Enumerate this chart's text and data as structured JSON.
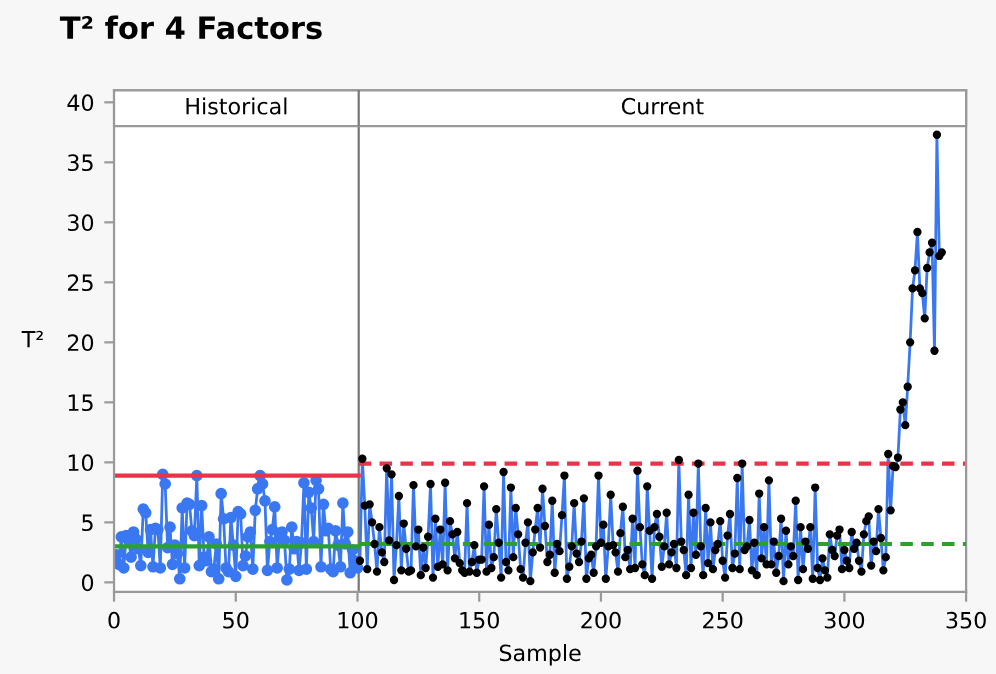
{
  "chart_data": {
    "type": "line",
    "title": "T² for 4 Factors",
    "xlabel": "Sample",
    "ylabel": "T²",
    "xlim": [
      0,
      350
    ],
    "xticks": [
      0,
      50,
      100,
      150,
      200,
      250,
      300,
      350
    ],
    "ylim": [
      -0.8,
      41
    ],
    "yticks": [
      0,
      5,
      10,
      15,
      20,
      25,
      30,
      35,
      40
    ],
    "grid": false,
    "legend": false,
    "ref_lines": [
      {
        "axis": "x",
        "value": 100.5,
        "color": "#777777"
      }
    ],
    "annotations": [
      "Historical",
      "Current"
    ],
    "series": [
      {
        "type": "line",
        "color": "#3a78f2",
        "marker": "circle",
        "x": [
          1,
          2,
          3,
          4,
          5,
          6,
          7,
          8,
          9,
          10,
          11,
          12,
          13,
          14,
          15,
          16,
          17,
          18,
          19,
          20,
          21,
          22,
          23,
          24,
          25,
          26,
          27,
          28,
          29,
          30,
          31,
          32,
          33,
          34,
          35,
          36,
          37,
          38,
          39,
          40,
          41,
          42,
          43,
          44,
          45,
          46,
          47,
          48,
          49,
          50,
          51,
          52,
          53,
          54,
          55,
          56,
          57,
          58,
          59,
          60,
          61,
          62,
          63,
          64,
          65,
          66,
          67,
          68,
          69,
          70,
          71,
          72,
          73,
          74,
          75,
          76,
          77,
          78,
          79,
          80,
          81,
          82,
          83,
          84,
          85,
          86,
          87,
          88,
          89,
          90,
          91,
          92,
          93,
          94,
          95,
          96,
          97,
          98,
          99,
          100
        ],
        "values": [
          2.3,
          1.5,
          3.8,
          1.2,
          3.9,
          3.5,
          2.1,
          4.2,
          3.6,
          2.8,
          1.4,
          6.1,
          5.8,
          2.5,
          4.4,
          1.3,
          4.5,
          4.4,
          1.2,
          9.0,
          8.2,
          2.9,
          4.6,
          1.5,
          3.1,
          2.4,
          0.3,
          6.2,
          1.2,
          6.6,
          6.5,
          4.3,
          3.9,
          8.9,
          1.4,
          6.4,
          2.1,
          1.8,
          3.8,
          0.9,
          1.1,
          3.2,
          0.3,
          7.4,
          5.3,
          1.2,
          0.9,
          5.4,
          3.1,
          0.5,
          5.9,
          5.7,
          1.4,
          2.2,
          3.8,
          4.2,
          1.1,
          6.0,
          7.8,
          8.9,
          8.2,
          6.8,
          1.0,
          3.4,
          4.4,
          6.3,
          1.2,
          3.8,
          4.2,
          3.5,
          0.2,
          1.1,
          4.6,
          2.8,
          3.4,
          1.0,
          3.3,
          8.3,
          1.1,
          7.5,
          6.2,
          3.4,
          8.5,
          7.8,
          1.3,
          6.5,
          4.3,
          4.5,
          1.1,
          0.9,
          4.3,
          3.1,
          1.3,
          6.6,
          3.2,
          4.2,
          0.8,
          2.7,
          1.8,
          1.2
        ]
      },
      {
        "color": "#3a78f2",
        "marker": "none",
        "x": [
          101,
          102,
          103,
          104,
          105,
          106,
          107,
          108,
          109,
          110,
          111,
          112,
          113,
          114,
          115,
          116,
          117,
          118,
          119,
          120,
          121,
          122,
          123,
          124,
          125,
          126,
          127,
          128,
          129,
          130,
          131,
          132,
          133,
          134,
          135,
          136,
          137,
          138,
          139,
          140,
          141,
          142,
          143,
          144,
          145,
          146,
          147,
          148,
          149,
          150,
          151,
          152,
          153,
          154,
          155,
          156,
          157,
          158,
          159,
          160,
          161,
          162,
          163,
          164,
          165,
          166,
          167,
          168,
          169,
          170,
          171,
          172,
          173,
          174,
          175,
          176,
          177,
          178,
          179,
          180,
          181,
          182,
          183,
          184,
          185,
          186,
          187,
          188,
          189,
          190,
          191,
          192,
          193,
          194,
          195,
          196,
          197,
          198,
          199,
          200,
          201,
          202,
          203,
          204,
          205,
          206,
          207,
          208,
          209,
          210,
          211,
          212,
          213,
          214,
          215,
          216,
          217,
          218,
          219,
          220,
          221,
          222,
          223,
          224,
          225,
          226,
          227,
          228,
          229,
          230,
          231,
          232,
          233,
          234,
          235,
          236,
          237,
          238,
          239,
          240,
          241,
          242,
          243,
          244,
          245,
          246,
          247,
          248,
          249,
          250,
          251,
          252,
          253,
          254,
          255,
          256,
          257,
          258,
          259,
          260,
          261,
          262,
          263,
          264,
          265,
          266,
          267,
          268,
          269,
          270,
          271,
          272,
          273,
          274,
          275,
          276,
          277,
          278,
          279,
          280,
          281,
          282,
          283,
          284,
          285,
          286,
          287,
          288,
          289,
          290,
          291,
          292,
          293,
          294,
          295,
          296,
          297,
          298,
          299,
          300,
          301,
          302,
          303,
          304,
          305,
          306,
          307,
          308,
          309,
          310,
          311,
          312,
          313,
          314,
          315,
          316,
          317,
          318,
          319,
          320,
          321,
          322,
          323,
          324,
          325,
          326,
          327,
          328,
          329,
          330,
          331,
          332,
          333,
          334,
          335,
          336,
          337,
          338,
          339,
          340
        ],
        "values": [
          1.8,
          10.3,
          6.4,
          1.1,
          6.5,
          5.0,
          3.2,
          0.9,
          4.6,
          2.5,
          1.7,
          9.5,
          3.5,
          9.0,
          0.2,
          3.1,
          7.2,
          1.0,
          4.9,
          2.8,
          0.9,
          1.0,
          8.1,
          3.0,
          4.4,
          0.6,
          2.9,
          1.2,
          3.8,
          8.2,
          0.4,
          5.3,
          1.3,
          4.4,
          1.5,
          8.3,
          1.0,
          5.1,
          4.0,
          2.0,
          4.2,
          1.6,
          1.0,
          0.8,
          6.6,
          0.9,
          1.7,
          3.1,
          0.8,
          1.9,
          1.9,
          8.0,
          0.9,
          4.8,
          1.2,
          2.1,
          6.1,
          3.3,
          0.4,
          9.2,
          1.7,
          1.0,
          7.9,
          2.1,
          6.2,
          4.0,
          1.1,
          0.4,
          3.3,
          5.0,
          0.1,
          2.5,
          4.4,
          6.2,
          2.9,
          7.8,
          4.7,
          1.7,
          2.3,
          6.8,
          0.8,
          3.2,
          2.6,
          5.6,
          8.9,
          0.3,
          1.3,
          3.0,
          6.6,
          2.4,
          1.7,
          3.4,
          7.0,
          0.3,
          2.0,
          2.3,
          0.8,
          3.0,
          8.9,
          3.3,
          4.8,
          0.3,
          3.0,
          7.3,
          3.1,
          2.5,
          0.9,
          4.1,
          6.3,
          2.1,
          2.7,
          1.1,
          5.3,
          1.2,
          9.3,
          4.6,
          1.5,
          0.6,
          8.0,
          4.3,
          0.3,
          4.6,
          5.7,
          3.8,
          1.3,
          3.0,
          5.8,
          1.5,
          2.5,
          3.2,
          1.2,
          10.2,
          3.4,
          2.7,
          0.6,
          7.3,
          1.2,
          5.8,
          2.3,
          9.9,
          3.0,
          0.6,
          6.2,
          1.6,
          5.0,
          1.1,
          2.7,
          3.2,
          5.1,
          1.8,
          0.4,
          3.9,
          5.7,
          1.2,
          2.4,
          8.7,
          1.1,
          9.9,
          2.7,
          3.0,
          5.2,
          1.0,
          3.3,
          0.6,
          7.4,
          2.0,
          4.6,
          1.5,
          8.5,
          1.5,
          3.4,
          0.8,
          2.2,
          5.3,
          0.1,
          4.3,
          1.5,
          3.0,
          2.2,
          6.8,
          0.2,
          4.6,
          1.1,
          3.4,
          2.8,
          4.6,
          0.3,
          7.9,
          1.2,
          0.2,
          2.0,
          1.0,
          0.4,
          4.0,
          2.7,
          2.2,
          3.9,
          4.4,
          1.1,
          2.7,
          1.8,
          1.2,
          4.2,
          2.8,
          3.3,
          1.8,
          0.9,
          4.0,
          5.1,
          5.5,
          1.4,
          3.4,
          2.6,
          6.1,
          3.7,
          1.0,
          2.1,
          10.7,
          6.0,
          9.7,
          9.6,
          10.4,
          14.4,
          15.0,
          13.1,
          16.3,
          20.0,
          24.5,
          26.0,
          29.2,
          24.5,
          24.1,
          22.0,
          26.2,
          27.5,
          28.3,
          19.3,
          37.3,
          27.2,
          27.5
        ]
      },
      {
        "type": "scatter",
        "color": "#000000",
        "marker": "circle",
        "x": [
          101,
          102,
          103,
          104,
          105,
          106,
          107,
          108,
          109,
          110,
          111,
          112,
          113,
          114,
          115,
          116,
          117,
          118,
          119,
          120,
          121,
          122,
          123,
          124,
          125,
          126,
          127,
          128,
          129,
          130,
          131,
          132,
          133,
          134,
          135,
          136,
          137,
          138,
          139,
          140,
          141,
          142,
          143,
          144,
          145,
          146,
          147,
          148,
          149,
          150,
          151,
          152,
          153,
          154,
          155,
          156,
          157,
          158,
          159,
          160,
          161,
          162,
          163,
          164,
          165,
          166,
          167,
          168,
          169,
          170,
          171,
          172,
          173,
          174,
          175,
          176,
          177,
          178,
          179,
          180,
          181,
          182,
          183,
          184,
          185,
          186,
          187,
          188,
          189,
          190,
          191,
          192,
          193,
          194,
          195,
          196,
          197,
          198,
          199,
          200,
          201,
          202,
          203,
          204,
          205,
          206,
          207,
          208,
          209,
          210,
          211,
          212,
          213,
          214,
          215,
          216,
          217,
          218,
          219,
          220,
          221,
          222,
          223,
          224,
          225,
          226,
          227,
          228,
          229,
          230,
          231,
          232,
          233,
          234,
          235,
          236,
          237,
          238,
          239,
          240,
          241,
          242,
          243,
          244,
          245,
          246,
          247,
          248,
          249,
          250,
          251,
          252,
          253,
          254,
          255,
          256,
          257,
          258,
          259,
          260,
          261,
          262,
          263,
          264,
          265,
          266,
          267,
          268,
          269,
          270,
          271,
          272,
          273,
          274,
          275,
          276,
          277,
          278,
          279,
          280,
          281,
          282,
          283,
          284,
          285,
          286,
          287,
          288,
          289,
          290,
          291,
          292,
          293,
          294,
          295,
          296,
          297,
          298,
          299,
          300,
          301,
          302,
          303,
          304,
          305,
          306,
          307,
          308,
          309,
          310,
          311,
          312,
          313,
          314,
          315,
          316,
          317,
          318,
          319,
          320,
          321,
          322,
          323,
          324,
          325,
          326,
          327,
          328,
          329,
          330,
          331,
          332,
          333,
          334,
          335,
          336,
          337,
          338,
          339,
          340
        ],
        "values": [
          1.8,
          10.3,
          6.4,
          1.1,
          6.5,
          5.0,
          3.2,
          0.9,
          4.6,
          2.5,
          1.7,
          9.5,
          3.5,
          9.0,
          0.2,
          3.1,
          7.2,
          1.0,
          4.9,
          2.8,
          0.9,
          1.0,
          8.1,
          3.0,
          4.4,
          0.6,
          2.9,
          1.2,
          3.8,
          8.2,
          0.4,
          5.3,
          1.3,
          4.4,
          1.5,
          8.3,
          1.0,
          5.1,
          4.0,
          2.0,
          4.2,
          1.6,
          1.0,
          0.8,
          6.6,
          0.9,
          1.7,
          3.1,
          0.8,
          1.9,
          1.9,
          8.0,
          0.9,
          4.8,
          1.2,
          2.1,
          6.1,
          3.3,
          0.4,
          9.2,
          1.7,
          1.0,
          7.9,
          2.1,
          6.2,
          4.0,
          1.1,
          0.4,
          3.3,
          5.0,
          0.1,
          2.5,
          4.4,
          6.2,
          2.9,
          7.8,
          4.7,
          1.7,
          2.3,
          6.8,
          0.8,
          3.2,
          2.6,
          5.6,
          8.9,
          0.3,
          1.3,
          3.0,
          6.6,
          2.4,
          1.7,
          3.4,
          7.0,
          0.3,
          2.0,
          2.3,
          0.8,
          3.0,
          8.9,
          3.3,
          4.8,
          0.3,
          3.0,
          7.3,
          3.1,
          2.5,
          0.9,
          4.1,
          6.3,
          2.1,
          2.7,
          1.1,
          5.3,
          1.2,
          9.3,
          4.6,
          1.5,
          0.6,
          8.0,
          4.3,
          0.3,
          4.6,
          5.7,
          3.8,
          1.3,
          3.0,
          5.8,
          1.5,
          2.5,
          3.2,
          1.2,
          10.2,
          3.4,
          2.7,
          0.6,
          7.3,
          1.2,
          5.8,
          2.3,
          9.9,
          3.0,
          0.6,
          6.2,
          1.6,
          5.0,
          1.1,
          2.7,
          3.2,
          5.1,
          1.8,
          0.4,
          3.9,
          5.7,
          1.2,
          2.4,
          8.7,
          1.1,
          9.9,
          2.7,
          3.0,
          5.2,
          1.0,
          3.3,
          0.6,
          7.4,
          2.0,
          4.6,
          1.5,
          8.5,
          1.5,
          3.4,
          0.8,
          2.2,
          5.3,
          0.1,
          4.3,
          1.5,
          3.0,
          2.2,
          6.8,
          0.2,
          4.6,
          1.1,
          3.4,
          2.8,
          4.6,
          0.3,
          7.9,
          1.2,
          0.2,
          2.0,
          1.0,
          0.4,
          4.0,
          2.7,
          2.2,
          3.9,
          4.4,
          1.1,
          2.7,
          1.8,
          1.2,
          4.2,
          2.8,
          3.3,
          1.8,
          0.9,
          4.0,
          5.1,
          5.5,
          1.4,
          3.4,
          2.6,
          6.1,
          3.7,
          1.0,
          2.1,
          10.7,
          6.0,
          9.7,
          9.6,
          10.4,
          14.4,
          15.0,
          13.1,
          16.3,
          20.0,
          24.5,
          26.0,
          29.2,
          24.5,
          24.1,
          22.0,
          26.2,
          27.5,
          28.3,
          19.3,
          37.3,
          27.2,
          27.5
        ]
      },
      {
        "type": "line",
        "color": "#e8334a",
        "marker": "none",
        "line_style": "solid",
        "x": [
          0,
          100.5
        ],
        "values": [
          8.9,
          8.9
        ]
      },
      {
        "type": "line",
        "color": "#2ca02c",
        "marker": "none",
        "line_style": "solid",
        "x": [
          0,
          100.5
        ],
        "values": [
          3.0,
          3.0
        ]
      },
      {
        "type": "line",
        "color": "#e8334a",
        "marker": "none",
        "line_style": "dashed",
        "x": [
          100.5,
          350
        ],
        "values": [
          9.9,
          9.9
        ]
      },
      {
        "type": "line",
        "color": "#2ca02c",
        "marker": "none",
        "line_style": "dashed",
        "x": [
          100.5,
          350
        ],
        "values": [
          3.2,
          3.2
        ]
      }
    ]
  }
}
